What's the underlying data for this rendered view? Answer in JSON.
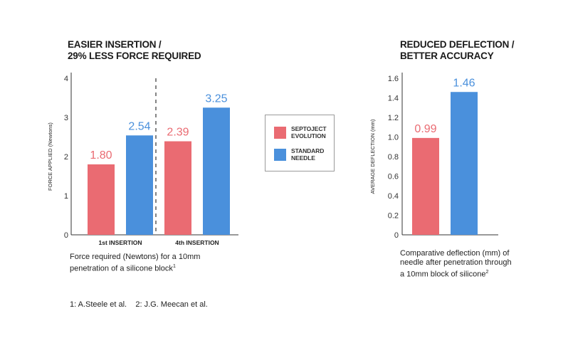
{
  "colors": {
    "septoject": "#ea6b72",
    "standard": "#4a90dc",
    "axis": "#333333"
  },
  "left_panel": {
    "title_line1": "EASIER INSERTION /",
    "title_line2": "29% LESS FORCE REQUIRED",
    "caption_line1": "Force required (Newtons) for a 10mm",
    "caption_line2": "penetration of a silicone block",
    "caption_sup": "1"
  },
  "right_panel": {
    "title_line1": "REDUCED DEFLECTION /",
    "title_line2": "BETTER ACCURACY",
    "caption_line1": "Comparative deflection (mm) of",
    "caption_line2": "needle after penetration through",
    "caption_line3": "a 10mm block of silicone",
    "caption_sup": "2"
  },
  "legend": {
    "item1_line1": "SEPTOJECT",
    "item1_line2": "EVOLUTION",
    "item2_line1": "STANDARD",
    "item2_line2": "NEEDLE"
  },
  "footnotes": "1: A.Steele et al.    2: J.G. Meecan et al.",
  "chart_data": [
    {
      "type": "bar",
      "title": "EASIER INSERTION / 29% LESS FORCE REQUIRED",
      "ylabel": "FORCE APPLIED (Newtons)",
      "ylim": [
        0,
        4
      ],
      "yticks": [
        "0",
        "1",
        "2",
        "3",
        "4"
      ],
      "categories": [
        "1st INSERTION",
        "4th INSERTION"
      ],
      "series": [
        {
          "name": "SEPTOJECT EVOLUTION",
          "values": [
            1.8,
            2.39
          ],
          "labels": [
            "1.80",
            "2.39"
          ]
        },
        {
          "name": "STANDARD NEEDLE",
          "values": [
            2.54,
            3.25
          ],
          "labels": [
            "2.54",
            "3.25"
          ]
        }
      ],
      "separator": "dashed"
    },
    {
      "type": "bar",
      "title": "REDUCED DEFLECTION / BETTER ACCURACY",
      "ylabel": "AVERAGE DEFLECTION (mm)",
      "ylim": [
        0,
        1.6
      ],
      "yticks": [
        "0",
        "0.2",
        "0.4",
        "0.6",
        "0.8",
        "1.0",
        "1.2",
        "1.4",
        "1.6"
      ],
      "categories": [
        ""
      ],
      "series": [
        {
          "name": "SEPTOJECT EVOLUTION",
          "values": [
            0.99
          ],
          "labels": [
            "0.99"
          ]
        },
        {
          "name": "STANDARD NEEDLE",
          "values": [
            1.46
          ],
          "labels": [
            "1.46"
          ]
        }
      ]
    }
  ]
}
